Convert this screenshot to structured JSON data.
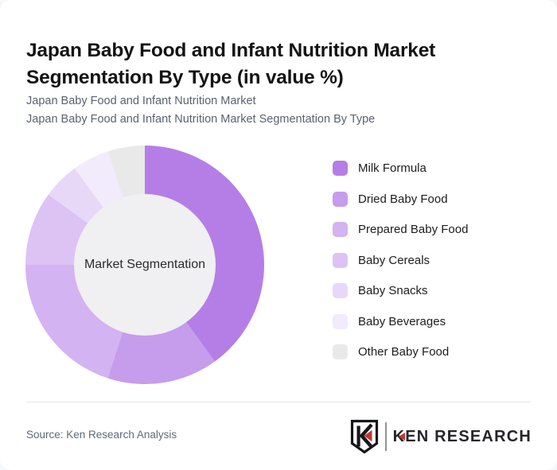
{
  "card": {
    "title": "Japan Baby Food and Infant Nutrition Market Segmentation By Type (in value %)",
    "subtitle_lines": [
      "Japan Baby Food and Infant Nutrition Market",
      "Japan Baby Food and Infant Nutrition Market Segmentation By Type"
    ],
    "source": "Source: Ken Research Analysis",
    "logo": {
      "emblem_letter": "K",
      "wordmark_first_letter": "K",
      "wordmark_rest": "EN RESEARCH",
      "accent_color": "#c53434",
      "text_color": "#26262a"
    }
  },
  "chart_data": {
    "type": "pie",
    "variant": "donut",
    "title": "Japan Baby Food and Infant Nutrition Market Segmentation By Type (in value %)",
    "center_label": "Market Segmentation",
    "unit": "%",
    "direction": "clockwise",
    "start_angle_deg": 0,
    "legend_position": "right",
    "inner_circle_color": "#f0eff1",
    "categories": [
      "Milk Formula",
      "Dried Baby Food",
      "Prepared Baby Food",
      "Baby Cereals",
      "Baby Snacks",
      "Baby Beverages",
      "Other Baby Food"
    ],
    "values": [
      40,
      15,
      20,
      10,
      5,
      5,
      5
    ],
    "colors": [
      "#b57ee6",
      "#c69cec",
      "#d3b3f1",
      "#dcc3f4",
      "#e7d8f8",
      "#f2ebfb",
      "#e9e9ea"
    ]
  }
}
